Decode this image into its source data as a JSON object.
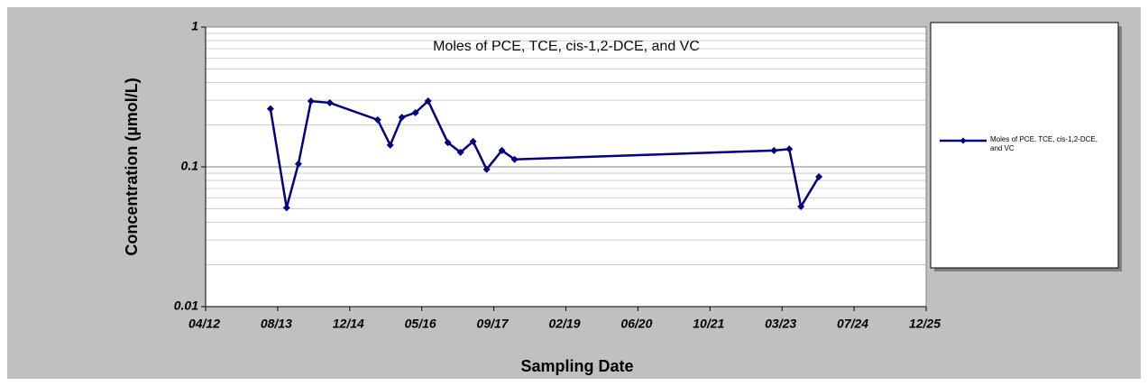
{
  "chart_data": {
    "type": "line",
    "title": "Moles of PCE, TCE, cis-1,2-DCE, and VC",
    "x_label": "Sampling Date",
    "y_label": "Concentration (µmol/L)",
    "y_scale": "log",
    "grid": true,
    "minor_grid": true,
    "legend": "right",
    "xlim": [
      41000,
      46000
    ],
    "xticks": [
      {
        "value": 41000,
        "label": "04/12"
      },
      {
        "value": 41500,
        "label": "08/13"
      },
      {
        "value": 42000,
        "label": "12/14"
      },
      {
        "value": 42500,
        "label": "05/16"
      },
      {
        "value": 43000,
        "label": "09/17"
      },
      {
        "value": 43500,
        "label": "02/19"
      },
      {
        "value": 44000,
        "label": "06/20"
      },
      {
        "value": 44500,
        "label": "10/21"
      },
      {
        "value": 45000,
        "label": "03/23"
      },
      {
        "value": 45500,
        "label": "07/24"
      },
      {
        "value": 46000,
        "label": "12/25"
      }
    ],
    "ylim": [
      0.01,
      1
    ],
    "yticks": [
      0.01,
      0.1,
      1
    ],
    "x": [
      41450,
      41562,
      41644,
      41731,
      41862,
      42194,
      42281,
      42362,
      42456,
      42544,
      42681,
      42769,
      42856,
      42950,
      43056,
      43144,
      44944,
      45050,
      45131,
      45256
    ],
    "series": [
      {
        "name": "Moles of PCE, TCE, cis-1,2-DCE, and VC",
        "color": "#000080",
        "values": [
          0.26,
          0.051,
          0.105,
          0.295,
          0.287,
          0.217,
          0.143,
          0.226,
          0.244,
          0.296,
          0.149,
          0.127,
          0.152,
          0.096,
          0.131,
          0.113,
          0.131,
          0.134,
          0.052,
          0.085
        ]
      }
    ]
  }
}
